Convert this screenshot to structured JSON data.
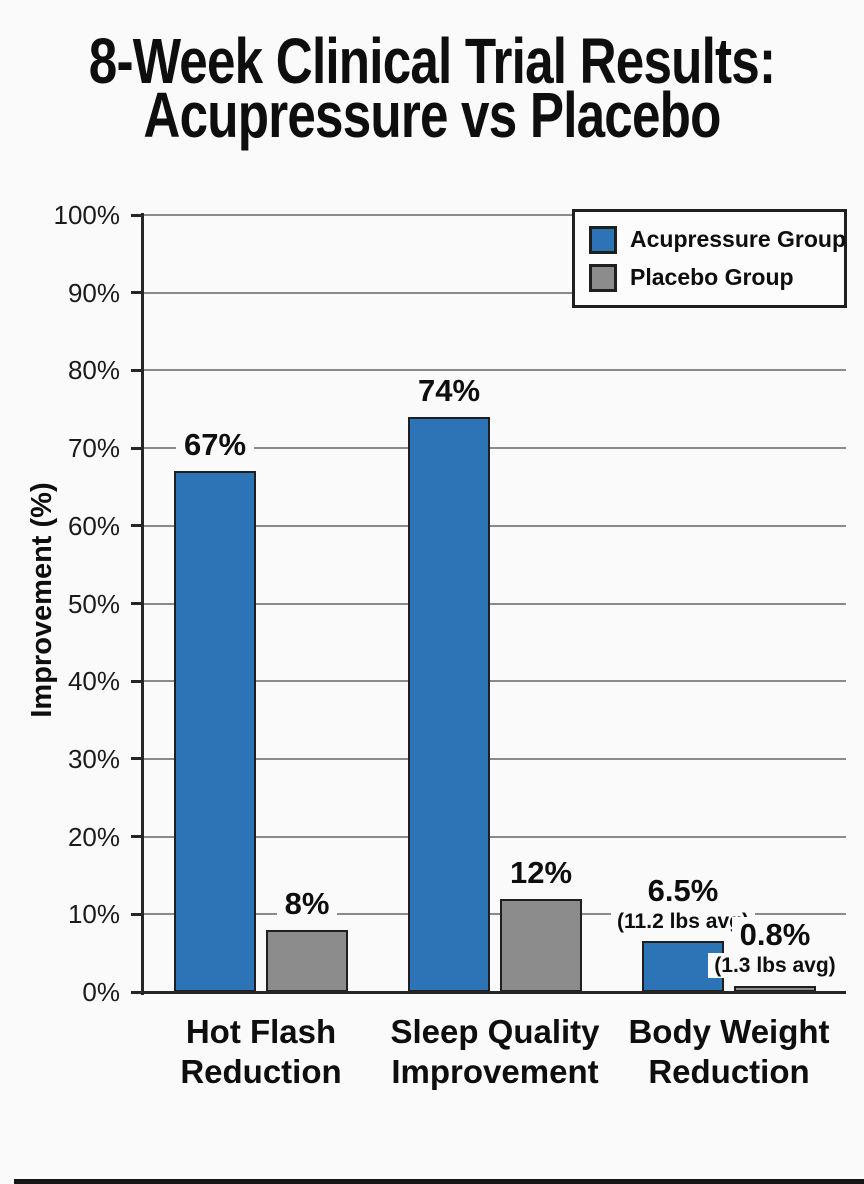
{
  "page": {
    "background": "#fafafa",
    "footer_bar_color": "#161616"
  },
  "title": {
    "line1": "8-Week Clinical Trial Results:",
    "line2": "Acupressure vs Placebo"
  },
  "chart_data": {
    "type": "bar",
    "title": "8-Week Clinical Trial Results: Acupressure vs Placebo",
    "xlabel": "",
    "ylabel": "Improvement (%)",
    "ylim": [
      0,
      100
    ],
    "ytick_step": 10,
    "ytick_suffix": "%",
    "grid": true,
    "legend_position": "top-right",
    "categories": [
      "Hot Flash\nReduction",
      "Sleep Quality\nImprovement",
      "Body Weight\nReduction"
    ],
    "series": [
      {
        "name": "Acupressure Group",
        "color": "#2d74b7",
        "values": [
          67,
          74,
          6.5
        ],
        "value_labels": [
          "67%",
          "74%",
          "6.5%"
        ],
        "sub_labels": [
          null,
          null,
          "(11.2 lbs avg)"
        ]
      },
      {
        "name": "Placebo Group",
        "color": "#8c8c8c",
        "values": [
          8,
          12,
          0.8
        ],
        "value_labels": [
          "8%",
          "12%",
          "0.8%"
        ],
        "sub_labels": [
          null,
          null,
          "(1.3 lbs avg)"
        ]
      }
    ],
    "bar_border_color": "#1f1f1f",
    "gridline_color": "#8a8a8a",
    "axis_color": "#262626",
    "text_color": "#111111"
  }
}
